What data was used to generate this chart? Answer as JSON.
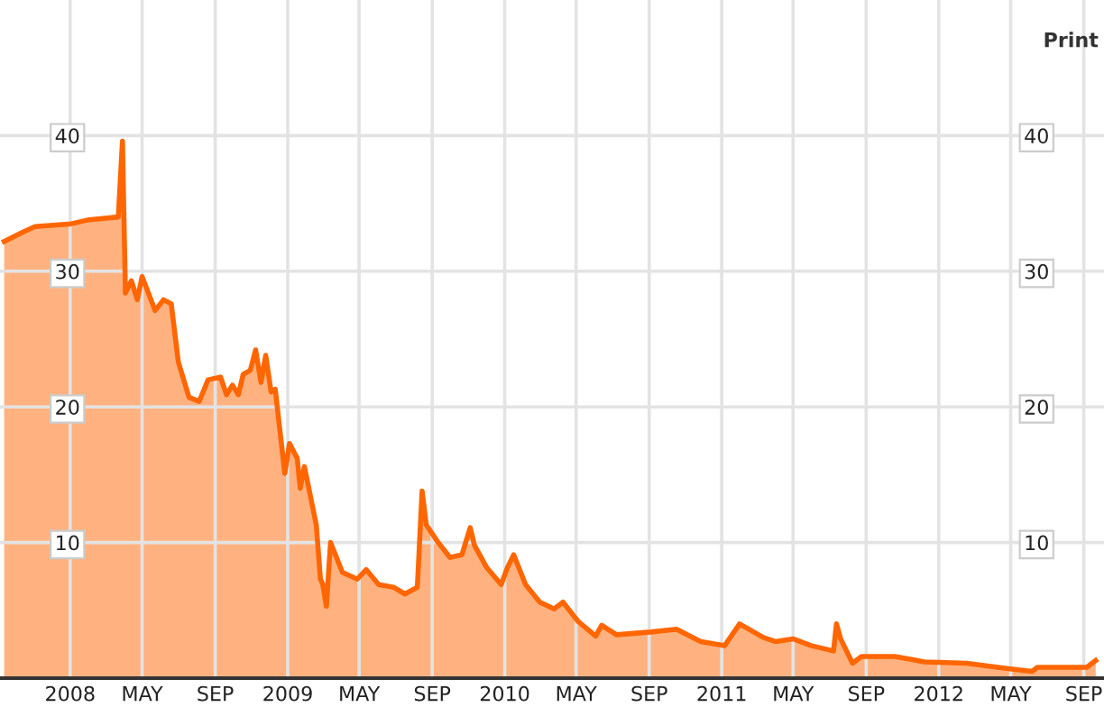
{
  "chart_data": {
    "type": "area",
    "x": [
      "2007-09-12",
      "2007-10-14",
      "2007-11-03",
      "2008-01-03",
      "2008-02-02",
      "2008-03-22",
      "2008-03-29",
      "2008-04-03",
      "2008-04-13",
      "2008-04-23",
      "2008-05-01",
      "2008-05-23",
      "2008-06-06",
      "2008-06-19",
      "2008-07-01",
      "2008-07-19",
      "2008-08-05",
      "2008-08-20",
      "2008-09-10",
      "2008-09-20",
      "2008-09-30",
      "2008-10-10",
      "2008-10-18",
      "2008-10-30",
      "2008-11-08",
      "2008-11-17",
      "2008-11-25",
      "2008-12-04",
      "2008-12-11",
      "2008-12-27",
      "2009-01-04",
      "2009-01-17",
      "2009-01-22",
      "2009-01-29",
      "2009-02-18",
      "2009-02-25",
      "2009-03-01",
      "2009-03-07",
      "2009-03-14",
      "2009-04-03",
      "2009-04-28",
      "2009-05-13",
      "2009-06-03",
      "2009-06-28",
      "2009-07-17",
      "2009-08-07",
      "2009-08-15",
      "2009-08-22",
      "2009-09-11",
      "2009-10-01",
      "2009-10-21",
      "2009-11-04",
      "2009-11-11",
      "2009-12-01",
      "2009-12-26",
      "2010-01-05",
      "2010-01-16",
      "2010-02-05",
      "2010-03-01",
      "2010-03-25",
      "2010-04-09",
      "2010-05-04",
      "2010-06-03",
      "2010-06-13",
      "2010-07-08",
      "2010-09-03",
      "2010-10-17",
      "2010-11-27",
      "2011-01-06",
      "2011-01-31",
      "2011-03-12",
      "2011-04-01",
      "2011-05-01",
      "2011-05-31",
      "2011-07-08",
      "2011-07-13",
      "2011-07-20",
      "2011-08-09",
      "2011-08-24",
      "2011-10-19",
      "2011-12-08",
      "2012-02-17",
      "2012-04-27",
      "2012-06-06",
      "2012-06-15",
      "2012-09-06",
      "2012-09-21"
    ],
    "series": [
      {
        "color": "#ff6600",
        "values": [
          32.2,
          32.9,
          33.3,
          33.5,
          33.8,
          34.0,
          39.6,
          28.4,
          29.3,
          27.9,
          29.6,
          27.1,
          27.9,
          27.6,
          23.3,
          20.7,
          20.4,
          22.0,
          22.2,
          20.9,
          21.6,
          20.9,
          22.4,
          22.7,
          24.2,
          21.8,
          23.8,
          21.1,
          21.3,
          15.1,
          17.3,
          16.2,
          14.0,
          15.6,
          11.3,
          7.3,
          6.9,
          5.3,
          10.0,
          7.8,
          7.3,
          8.0,
          6.9,
          6.7,
          6.2,
          6.7,
          13.8,
          11.3,
          10.0,
          8.9,
          9.1,
          11.1,
          9.8,
          8.2,
          6.9,
          8.1,
          9.1,
          6.9,
          5.6,
          5.1,
          5.6,
          4.2,
          3.1,
          3.9,
          3.2,
          3.4,
          3.6,
          2.7,
          2.4,
          4.0,
          3.0,
          2.7,
          2.9,
          2.4,
          2.0,
          4.0,
          2.9,
          1.1,
          1.6,
          1.6,
          1.2,
          1.1,
          0.7,
          0.5,
          0.8,
          0.8,
          1.3
        ]
      }
    ],
    "xlim": [
      "2007-09-05",
      "2012-10-05"
    ],
    "xticks": [
      {
        "value": "2008-01-01",
        "label": "2008"
      },
      {
        "value": "2008-05-01",
        "label": "MAY"
      },
      {
        "value": "2008-09-01",
        "label": "SEP"
      },
      {
        "value": "2009-01-01",
        "label": "2009"
      },
      {
        "value": "2009-05-01",
        "label": "MAY"
      },
      {
        "value": "2009-09-01",
        "label": "SEP"
      },
      {
        "value": "2010-01-01",
        "label": "2010"
      },
      {
        "value": "2010-05-01",
        "label": "MAY"
      },
      {
        "value": "2010-09-01",
        "label": "SEP"
      },
      {
        "value": "2011-01-01",
        "label": "2011"
      },
      {
        "value": "2011-05-01",
        "label": "MAY"
      },
      {
        "value": "2011-09-01",
        "label": "SEP"
      },
      {
        "value": "2012-01-01",
        "label": "2012"
      },
      {
        "value": "2012-05-01",
        "label": "MAY"
      },
      {
        "value": "2012-09-01",
        "label": "SEP"
      }
    ],
    "ylim": [
      0,
      50
    ],
    "yticks": [
      10,
      20,
      30,
      40
    ],
    "y2lim": [
      0,
      50
    ],
    "y2ticks": [
      10,
      20,
      30,
      40
    ],
    "grid": true,
    "legend": false,
    "annotations": [
      "Print"
    ]
  }
}
